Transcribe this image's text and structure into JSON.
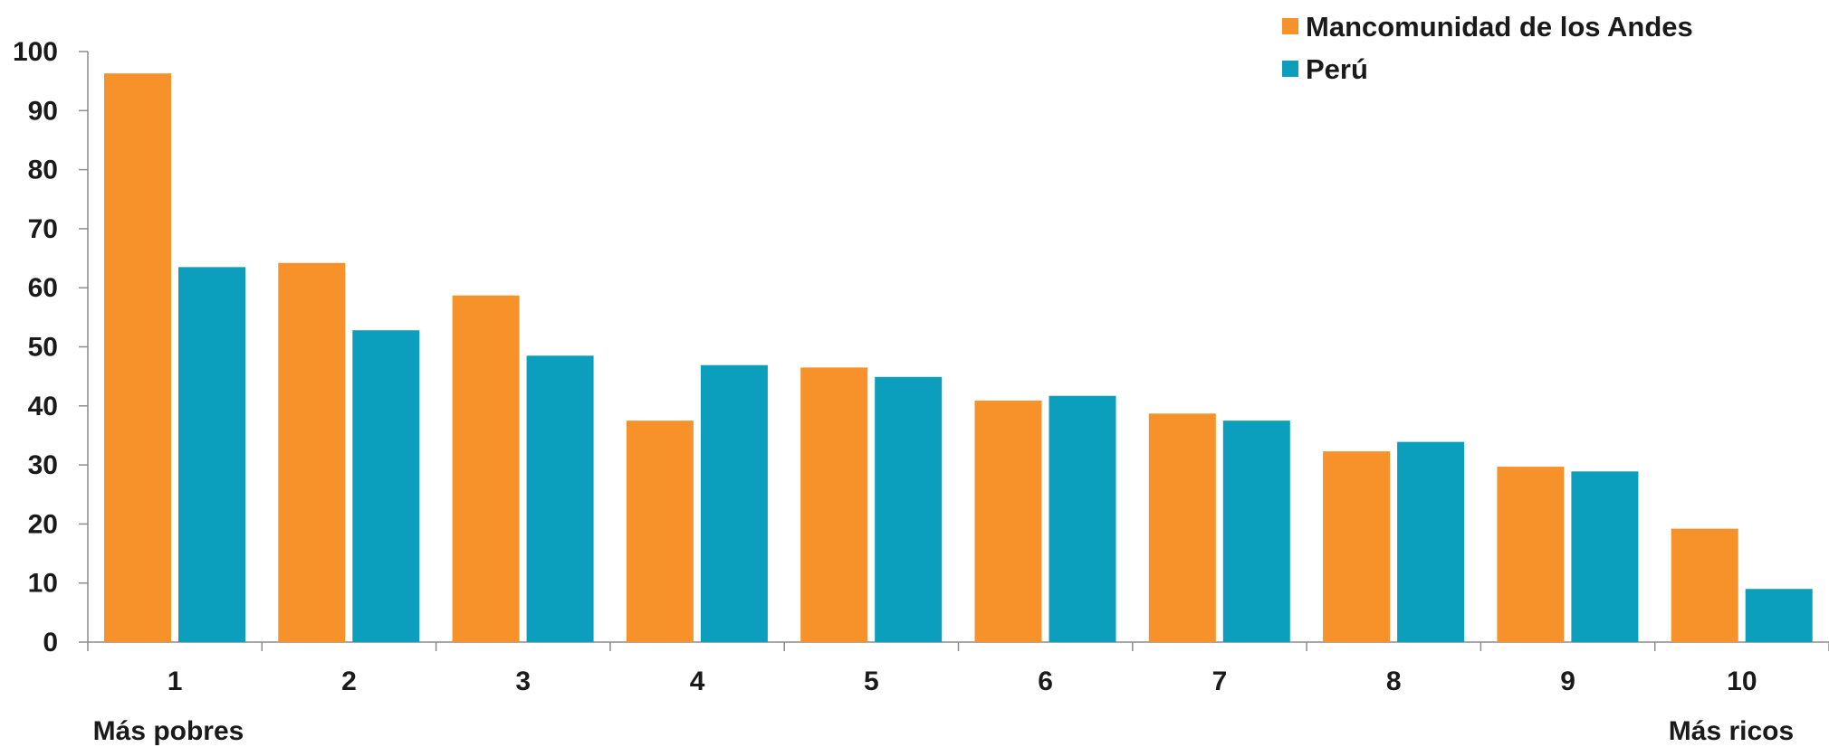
{
  "chart_data": {
    "type": "bar",
    "categories": [
      "1",
      "2",
      "3",
      "4",
      "5",
      "6",
      "7",
      "8",
      "9",
      "10"
    ],
    "series": [
      {
        "name": "Mancomunidad de los Andes",
        "color": "#f7922a",
        "values": [
          96.3,
          64.2,
          58.7,
          37.5,
          46.5,
          40.9,
          38.7,
          32.3,
          29.7,
          19.2
        ]
      },
      {
        "name": "Perú",
        "color": "#0b9fbd",
        "values": [
          63.5,
          52.8,
          48.5,
          46.9,
          44.9,
          41.7,
          37.5,
          33.9,
          28.9,
          9.0
        ]
      }
    ],
    "ylim": [
      0,
      100
    ],
    "yticks": [
      0,
      10,
      20,
      30,
      40,
      50,
      60,
      70,
      80,
      90,
      100
    ],
    "x_end_labels": {
      "left": "Más pobres",
      "right": "Más ricos"
    },
    "legend_position": "top-right",
    "grid": false
  }
}
